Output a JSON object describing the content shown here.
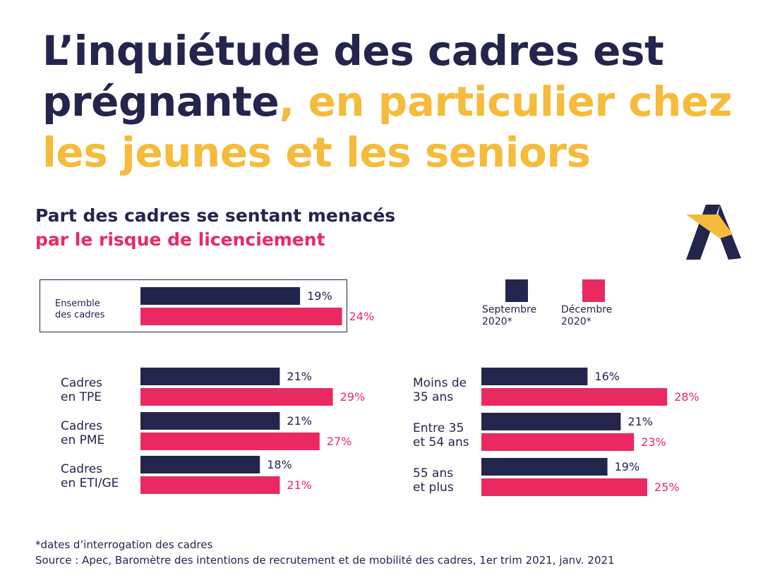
{
  "title": {
    "part1": "L’inquiétude des cadres est prégnante",
    "part2": ", en particulier chez les jeunes et les seniors"
  },
  "subtitle": {
    "line1": "Part des cadres se sentant menacés",
    "line2": "par le risque de licenciement"
  },
  "legend": {
    "series1": "Septembre\n2020*",
    "series2": "Décembre\n2020*"
  },
  "colors": {
    "series1": "#23254d",
    "series2": "#ea2961",
    "title_accent": "#f5bb3b"
  },
  "logo_icon": "apec-logo-icon",
  "chart_data": [
    {
      "type": "bar",
      "orientation": "horizontal",
      "categories": [
        "Ensemble des cadres"
      ],
      "series": [
        {
          "name": "Septembre 2020*",
          "values": [
            19
          ]
        },
        {
          "name": "Décembre 2020*",
          "values": [
            24
          ]
        }
      ],
      "value_labels": [
        [
          "19%"
        ],
        [
          "24%"
        ]
      ],
      "unit": "%"
    },
    {
      "type": "bar",
      "orientation": "horizontal",
      "categories": [
        "Cadres en TPE",
        "Cadres en PME",
        "Cadres en ETI/GE"
      ],
      "series": [
        {
          "name": "Septembre 2020*",
          "values": [
            21,
            21,
            18
          ]
        },
        {
          "name": "Décembre 2020*",
          "values": [
            29,
            27,
            21
          ]
        }
      ],
      "value_labels": [
        [
          "21%",
          "21%",
          "18%"
        ],
        [
          "29%",
          "27%",
          "21%"
        ]
      ],
      "unit": "%"
    },
    {
      "type": "bar",
      "orientation": "horizontal",
      "categories": [
        "Moins de 35 ans",
        "Entre 35 et 54 ans",
        "55 ans et plus"
      ],
      "series": [
        {
          "name": "Septembre 2020*",
          "values": [
            16,
            21,
            19
          ]
        },
        {
          "name": "Décembre 2020*",
          "values": [
            28,
            23,
            25
          ]
        }
      ],
      "value_labels": [
        [
          "16%",
          "21%",
          "19%"
        ],
        [
          "28%",
          "23%",
          "25%"
        ]
      ],
      "unit": "%"
    }
  ],
  "category_labels": {
    "ensemble": "Ensemble\ndes cadres",
    "tpe": "Cadres\nen TPE",
    "pme": "Cadres\nen PME",
    "eti": "Cadres\nen ETI/GE",
    "moins35": "Moins de\n35 ans",
    "entre35_54": "Entre 35\net 54 ans",
    "plus55": "55 ans\net plus"
  },
  "footnote": {
    "line1": "*dates d’interrogation des cadres",
    "line2": "Source : Apec, Baromètre des intentions de recrutement et de mobilité des cadres, 1er trim 2021, janv. 2021"
  }
}
